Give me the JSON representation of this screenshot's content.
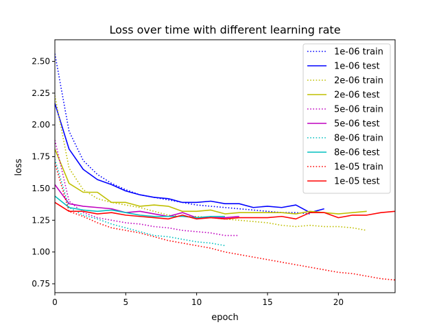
{
  "chart_data": {
    "type": "line",
    "title": "Loss over time with different learning rate",
    "xlabel": "epoch",
    "ylabel": "loss",
    "xlim": [
      0,
      24
    ],
    "ylim": [
      0.68,
      2.67
    ],
    "xticks": [
      0,
      5,
      10,
      15,
      20
    ],
    "yticks": [
      0.75,
      1.0,
      1.25,
      1.5,
      1.75,
      2.0,
      2.25,
      2.5
    ],
    "grid": false,
    "legend_position": "top-right",
    "series": [
      {
        "name": "1e-06 train",
        "color": "#0000ff",
        "dash": "dotted",
        "x": [
          0,
          1,
          2,
          3,
          4,
          5,
          6,
          7,
          8,
          9,
          10,
          11,
          12,
          13,
          14,
          15,
          16,
          17,
          18
        ],
        "y": [
          2.56,
          1.95,
          1.72,
          1.61,
          1.54,
          1.49,
          1.45,
          1.43,
          1.41,
          1.39,
          1.37,
          1.36,
          1.35,
          1.34,
          1.33,
          1.32,
          1.31,
          1.31,
          1.3
        ]
      },
      {
        "name": "1e-06 test",
        "color": "#0000ff",
        "dash": "solid",
        "x": [
          0,
          1,
          2,
          3,
          4,
          5,
          6,
          7,
          8,
          9,
          10,
          11,
          12,
          13,
          14,
          15,
          16,
          17,
          18,
          19
        ],
        "y": [
          2.17,
          1.81,
          1.65,
          1.57,
          1.53,
          1.48,
          1.45,
          1.43,
          1.42,
          1.39,
          1.39,
          1.4,
          1.38,
          1.38,
          1.35,
          1.36,
          1.35,
          1.37,
          1.31,
          1.34
        ]
      },
      {
        "name": "2e-06 train",
        "color": "#bfbf00",
        "dash": "dotted",
        "x": [
          0,
          1,
          2,
          3,
          4,
          5,
          6,
          7,
          8,
          9,
          10,
          11,
          12,
          13,
          14,
          15,
          16,
          17,
          18,
          19,
          20,
          21,
          22
        ],
        "y": [
          2.23,
          1.66,
          1.49,
          1.42,
          1.39,
          1.37,
          1.35,
          1.32,
          1.29,
          1.28,
          1.28,
          1.27,
          1.26,
          1.25,
          1.24,
          1.23,
          1.21,
          1.2,
          1.21,
          1.2,
          1.2,
          1.19,
          1.17
        ]
      },
      {
        "name": "2e-06 test",
        "color": "#bfbf00",
        "dash": "solid",
        "x": [
          0,
          1,
          2,
          3,
          4,
          5,
          6,
          7,
          8,
          9,
          10,
          11,
          12,
          13,
          14,
          15,
          16,
          17,
          18,
          19,
          20,
          21,
          22
        ],
        "y": [
          1.81,
          1.54,
          1.47,
          1.47,
          1.39,
          1.39,
          1.36,
          1.37,
          1.36,
          1.32,
          1.32,
          1.33,
          1.3,
          1.31,
          1.31,
          1.31,
          1.31,
          1.3,
          1.32,
          1.31,
          1.3,
          1.31,
          1.32
        ]
      },
      {
        "name": "5e-06 train",
        "color": "#bf00bf",
        "dash": "dotted",
        "x": [
          0,
          1,
          2,
          3,
          4,
          5,
          6,
          7,
          8,
          9,
          10,
          11,
          12,
          13
        ],
        "y": [
          1.88,
          1.4,
          1.31,
          1.27,
          1.25,
          1.23,
          1.22,
          1.2,
          1.19,
          1.17,
          1.16,
          1.15,
          1.13,
          1.13
        ]
      },
      {
        "name": "5e-06 test",
        "color": "#bf00bf",
        "dash": "solid",
        "x": [
          0,
          1,
          2,
          3,
          4,
          5,
          6,
          7,
          8,
          9,
          10,
          11,
          12,
          13
        ],
        "y": [
          1.53,
          1.38,
          1.36,
          1.35,
          1.34,
          1.31,
          1.32,
          1.3,
          1.28,
          1.31,
          1.27,
          1.27,
          1.27,
          1.28
        ]
      },
      {
        "name": "8e-06 train",
        "color": "#00bfbf",
        "dash": "dotted",
        "x": [
          0,
          1,
          2,
          3,
          4,
          5,
          6,
          7,
          8,
          9,
          10,
          11,
          12
        ],
        "y": [
          1.73,
          1.35,
          1.29,
          1.26,
          1.22,
          1.19,
          1.16,
          1.13,
          1.12,
          1.1,
          1.08,
          1.07,
          1.05
        ]
      },
      {
        "name": "8e-06 test",
        "color": "#00bfbf",
        "dash": "solid",
        "x": [
          0,
          1,
          2,
          3,
          4,
          5,
          6,
          7,
          8,
          9,
          10,
          11,
          12
        ],
        "y": [
          1.44,
          1.35,
          1.33,
          1.32,
          1.33,
          1.31,
          1.29,
          1.28,
          1.28,
          1.28,
          1.27,
          1.28,
          1.28
        ]
      },
      {
        "name": "1e-05 train",
        "color": "#ff0000",
        "dash": "dotted",
        "x": [
          0,
          1,
          2,
          3,
          4,
          5,
          6,
          7,
          8,
          9,
          10,
          11,
          12,
          13,
          14,
          15,
          16,
          17,
          18,
          19,
          20,
          21,
          22,
          23,
          24
        ],
        "y": [
          1.7,
          1.32,
          1.28,
          1.23,
          1.19,
          1.17,
          1.15,
          1.12,
          1.09,
          1.07,
          1.05,
          1.03,
          1.0,
          0.98,
          0.96,
          0.94,
          0.92,
          0.9,
          0.88,
          0.86,
          0.84,
          0.83,
          0.81,
          0.79,
          0.78
        ]
      },
      {
        "name": "1e-05 test",
        "color": "#ff0000",
        "dash": "solid",
        "x": [
          0,
          1,
          2,
          3,
          4,
          5,
          6,
          7,
          8,
          9,
          10,
          11,
          12,
          13,
          14,
          15,
          16,
          17,
          18,
          19,
          20,
          21,
          22,
          23,
          24
        ],
        "y": [
          1.39,
          1.32,
          1.32,
          1.3,
          1.31,
          1.29,
          1.28,
          1.27,
          1.26,
          1.29,
          1.26,
          1.27,
          1.26,
          1.27,
          1.27,
          1.27,
          1.28,
          1.26,
          1.31,
          1.31,
          1.27,
          1.29,
          1.29,
          1.31,
          1.32
        ]
      }
    ]
  }
}
